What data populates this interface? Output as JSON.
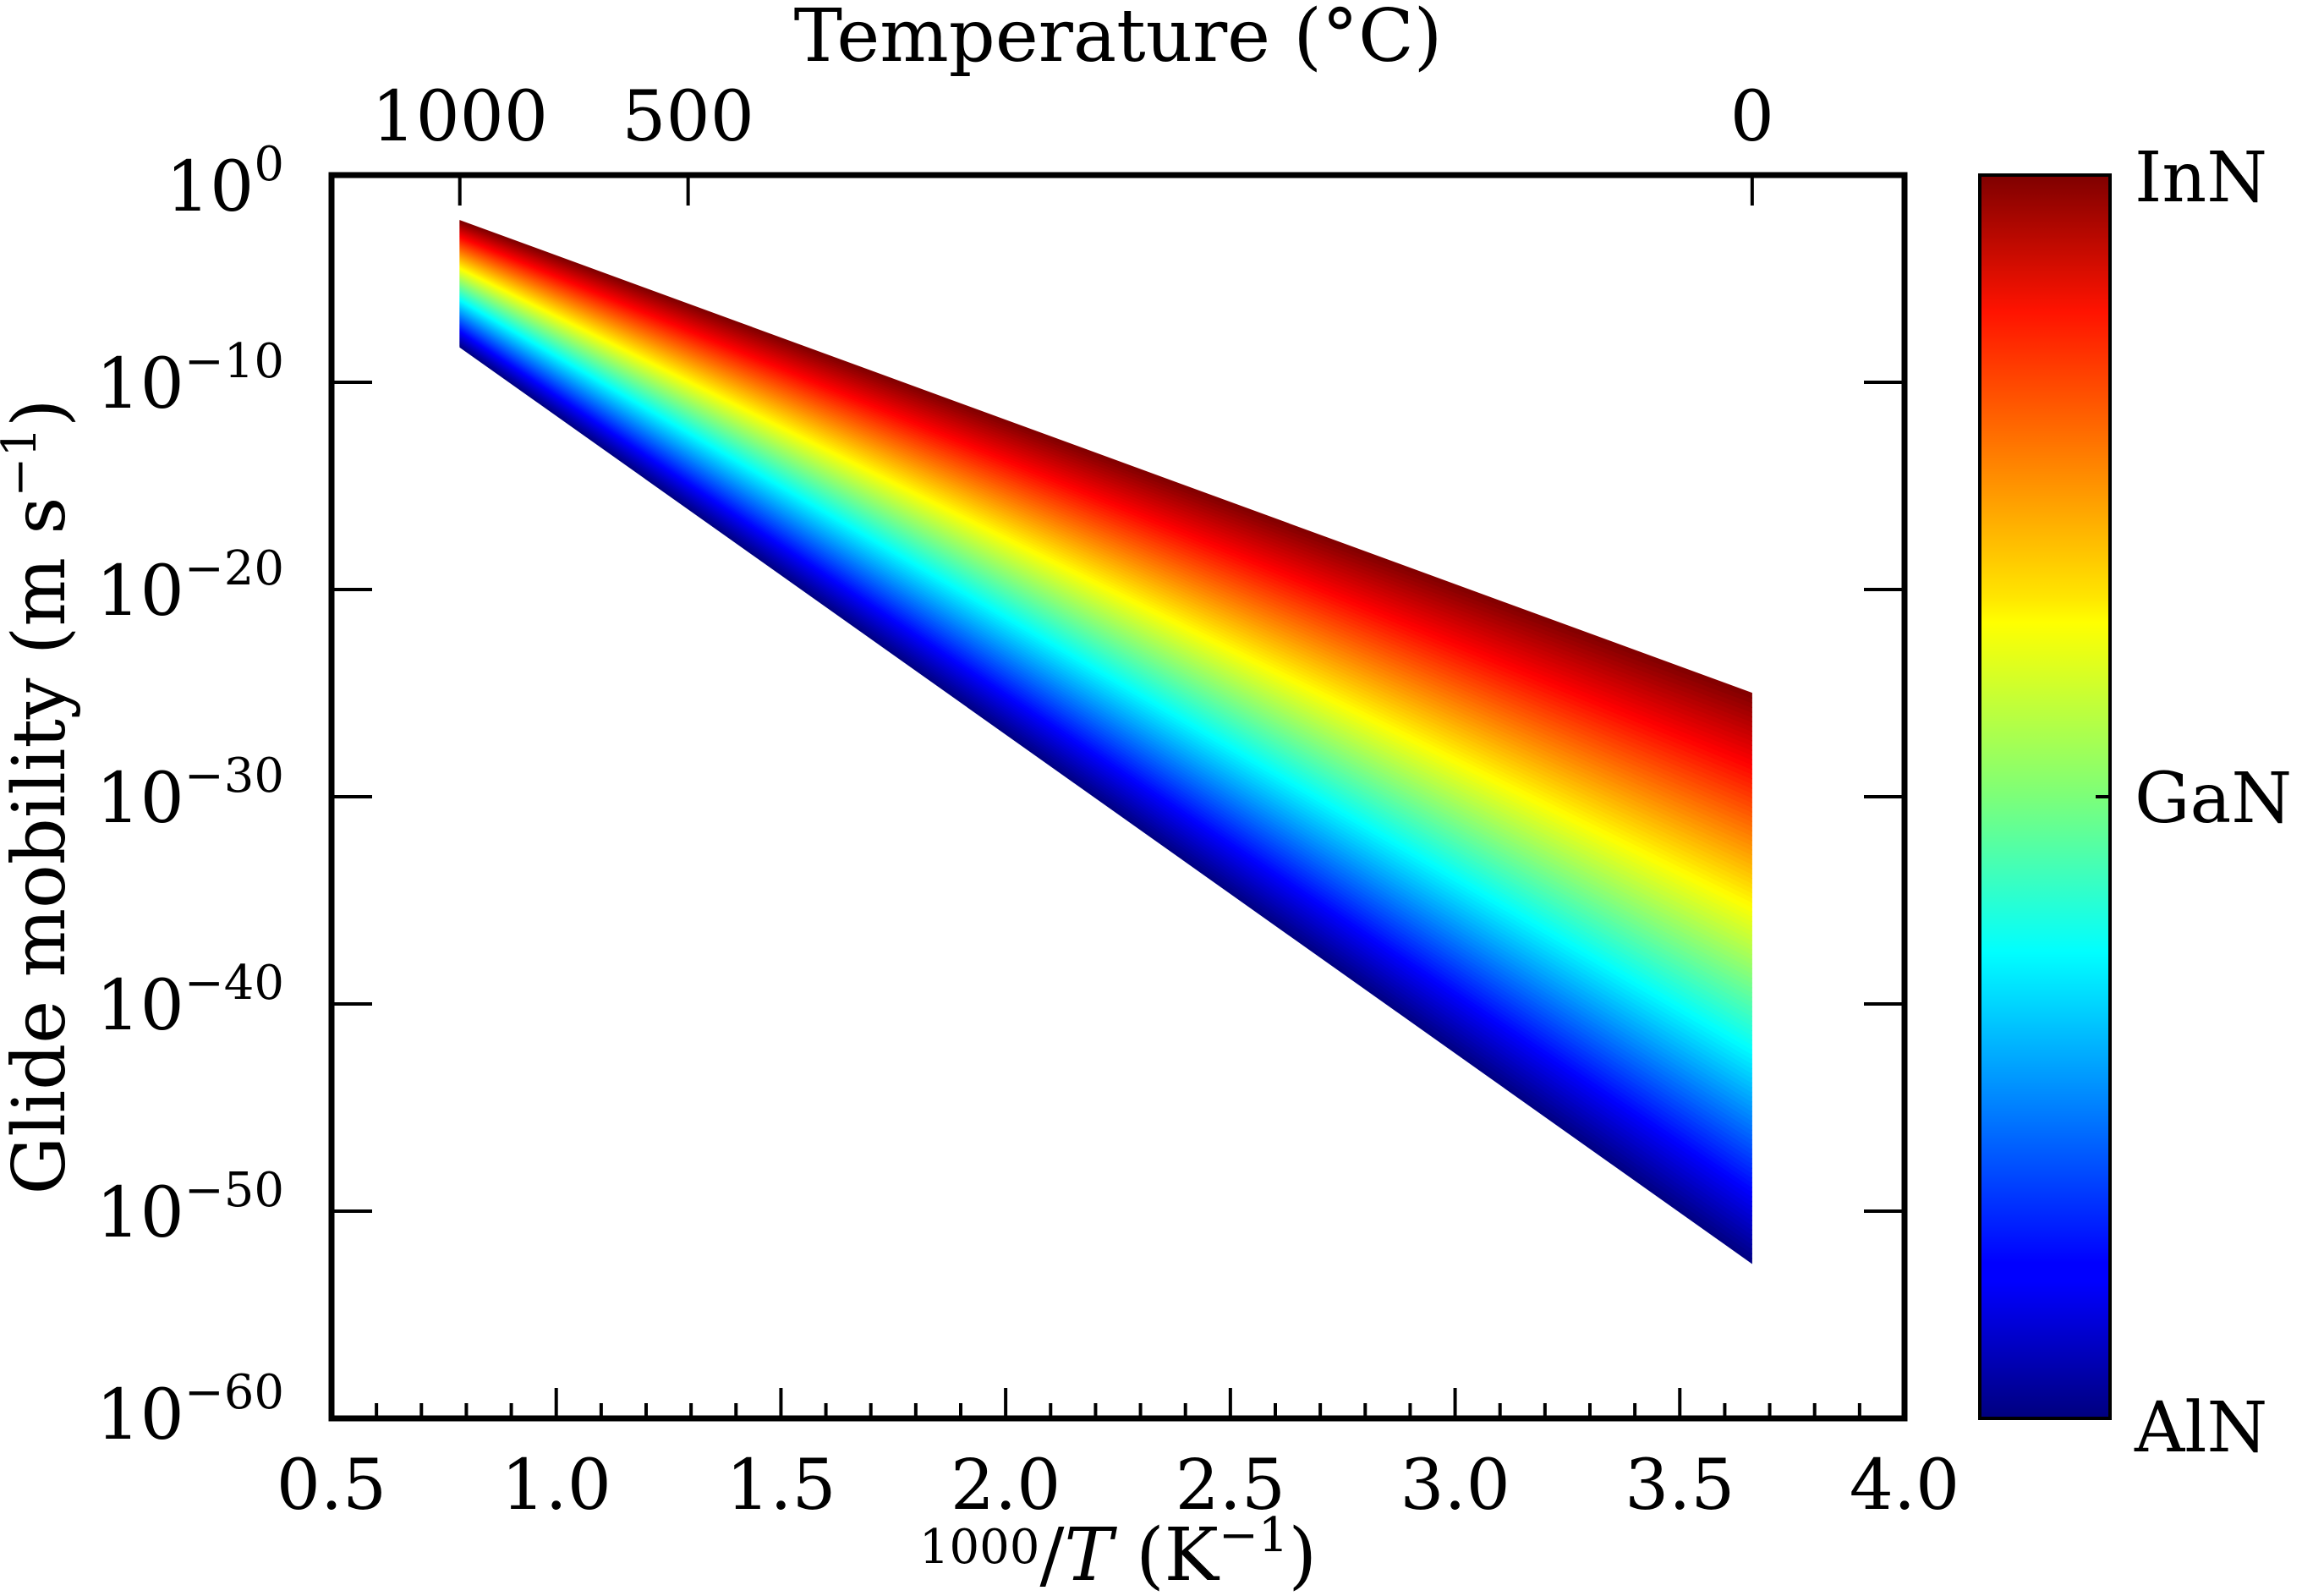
{
  "chart_data": {
    "type": "area",
    "title": "",
    "x_label": {
      "numerator": "1000",
      "slash": "/",
      "variable": "T",
      "unit_open": " (K",
      "unit_exp": "−1",
      "unit_close": ")"
    },
    "y_label": {
      "main": "Glide mobility (m s",
      "exp": "−1",
      "close": ")"
    },
    "top_axis_label": "Temperature (°C)",
    "x_range": [
      0.5,
      4.0
    ],
    "y_log_range": [
      -60,
      0
    ],
    "x_ticks": [
      "0.5",
      "1.0",
      "1.5",
      "2.0",
      "2.5",
      "3.0",
      "3.5",
      "4.0"
    ],
    "x_tick_values": [
      0.5,
      1.0,
      1.5,
      2.0,
      2.5,
      3.0,
      3.5,
      4.0
    ],
    "y_ticks": [
      {
        "base": "10",
        "exp": "0",
        "value": 0
      },
      {
        "base": "10",
        "exp": "−10",
        "value": -10
      },
      {
        "base": "10",
        "exp": "−20",
        "value": -20
      },
      {
        "base": "10",
        "exp": "−30",
        "value": -30
      },
      {
        "base": "10",
        "exp": "−40",
        "value": -40
      },
      {
        "base": "10",
        "exp": "−50",
        "value": -50
      },
      {
        "base": "10",
        "exp": "−60",
        "value": -60
      }
    ],
    "top_ticks": [
      {
        "label": "1000",
        "celsius": 1000
      },
      {
        "label": "500",
        "celsius": 500
      },
      {
        "label": "0",
        "celsius": 0
      }
    ],
    "bands": {
      "x_start": 0.786,
      "x_end": 3.66,
      "top_series_log10": [
        -2.2,
        -25.0
      ],
      "bottom_series_log10": [
        -8.3,
        -52.5
      ],
      "gan_fraction": 0.5
    },
    "colorbar": {
      "colormap": "jet",
      "labels": [
        {
          "text": "InN",
          "position": 1.0
        },
        {
          "text": "GaN",
          "position": 0.5
        },
        {
          "text": "AlN",
          "position": 0.0
        }
      ]
    }
  }
}
